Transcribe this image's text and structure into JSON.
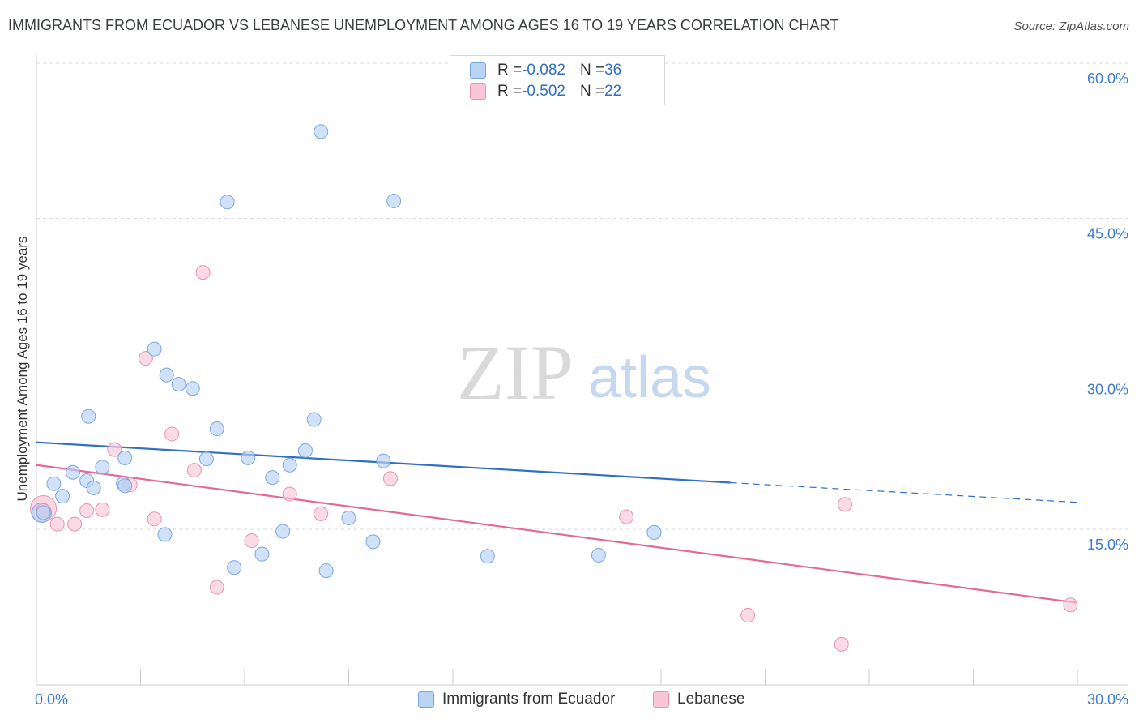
{
  "header": {
    "title": "IMMIGRANTS FROM ECUADOR VS LEBANESE UNEMPLOYMENT AMONG AGES 16 TO 19 YEARS CORRELATION CHART",
    "source": "Source: ZipAtlas.com"
  },
  "watermark": {
    "zip": "ZIP",
    "atlas": "atlas"
  },
  "legend": {
    "series1": {
      "r_label": "R = ",
      "r_value": "-0.082",
      "n_label": "N = ",
      "n_value": "36"
    },
    "series2": {
      "r_label": "R = ",
      "r_value": "-0.502",
      "n_label": "N = ",
      "n_value": "22"
    }
  },
  "colors": {
    "blue_fill": "#b9d3f5",
    "blue_stroke": "#7aa6e0",
    "blue_line": "#2f6fc4",
    "pink_fill": "#f8c6d6",
    "pink_stroke": "#e992b0",
    "pink_line": "#e46a96",
    "grid": "#d8d8d8",
    "tick_text": "#3d7bd0"
  },
  "chart_data": {
    "type": "scatter",
    "title": "IMMIGRANTS FROM ECUADOR VS LEBANESE UNEMPLOYMENT AMONG AGES 16 TO 19 YEARS CORRELATION CHART",
    "xlabel": "",
    "ylabel": "Unemployment Among Ages 16 to 19 years",
    "xlim": [
      0,
      30
    ],
    "ylim": [
      0,
      62
    ],
    "x_tick_labels": [
      "0.0%",
      "30.0%"
    ],
    "x_tick_values": [
      0,
      30
    ],
    "y_ticks": [
      {
        "value": 15,
        "label": "15.0%"
      },
      {
        "value": 30,
        "label": "30.0%"
      },
      {
        "value": 45,
        "label": "45.0%"
      },
      {
        "value": 60,
        "label": "60.0%"
      }
    ],
    "series": [
      {
        "name": "Immigrants from Ecuador",
        "color": "blue",
        "r": -0.082,
        "n": 36,
        "points": [
          [
            0.2,
            16.6
          ],
          [
            0.5,
            19.4
          ],
          [
            0.75,
            18.2
          ],
          [
            1.05,
            20.5
          ],
          [
            1.45,
            19.7
          ],
          [
            1.5,
            25.9
          ],
          [
            1.65,
            19.0
          ],
          [
            1.9,
            21.0
          ],
          [
            2.5,
            19.4
          ],
          [
            2.55,
            21.9
          ],
          [
            2.55,
            19.2
          ],
          [
            3.4,
            32.4
          ],
          [
            3.7,
            14.5
          ],
          [
            3.75,
            29.9
          ],
          [
            4.1,
            29.0
          ],
          [
            4.5,
            28.6
          ],
          [
            4.9,
            21.8
          ],
          [
            5.2,
            24.7
          ],
          [
            5.5,
            46.6
          ],
          [
            5.7,
            11.3
          ],
          [
            6.1,
            21.9
          ],
          [
            6.5,
            12.6
          ],
          [
            6.8,
            20.0
          ],
          [
            7.1,
            14.8
          ],
          [
            7.3,
            21.2
          ],
          [
            7.75,
            22.6
          ],
          [
            8.0,
            25.6
          ],
          [
            8.2,
            53.4
          ],
          [
            8.35,
            11.0
          ],
          [
            9.0,
            16.1
          ],
          [
            9.7,
            13.8
          ],
          [
            10.0,
            21.6
          ],
          [
            10.3,
            46.7
          ],
          [
            13.0,
            12.4
          ],
          [
            16.2,
            12.5
          ],
          [
            17.8,
            14.7
          ]
        ]
      },
      {
        "name": "Lebanese",
        "color": "pink",
        "r": -0.502,
        "n": 22,
        "points": [
          [
            0.2,
            16.8
          ],
          [
            0.6,
            15.5
          ],
          [
            1.1,
            15.5
          ],
          [
            1.45,
            16.8
          ],
          [
            1.9,
            16.9
          ],
          [
            2.25,
            22.7
          ],
          [
            2.7,
            19.3
          ],
          [
            3.15,
            31.5
          ],
          [
            3.4,
            16.0
          ],
          [
            3.9,
            24.2
          ],
          [
            4.55,
            20.7
          ],
          [
            4.8,
            39.8
          ],
          [
            5.2,
            9.4
          ],
          [
            6.2,
            13.9
          ],
          [
            7.3,
            18.4
          ],
          [
            8.2,
            16.5
          ],
          [
            10.2,
            19.9
          ],
          [
            17.0,
            16.2
          ],
          [
            20.5,
            6.7
          ],
          [
            23.2,
            3.9
          ],
          [
            23.3,
            17.4
          ],
          [
            29.8,
            7.7
          ]
        ]
      }
    ],
    "trend_lines": [
      {
        "series": "Immigrants from Ecuador",
        "x": [
          0,
          20
        ],
        "y": [
          23.4,
          19.5
        ],
        "dashed_extension_to_x": 30,
        "dashed_extension_y": 17.6
      },
      {
        "series": "Lebanese",
        "x": [
          0,
          30
        ],
        "y": [
          21.2,
          7.9
        ]
      }
    ]
  }
}
